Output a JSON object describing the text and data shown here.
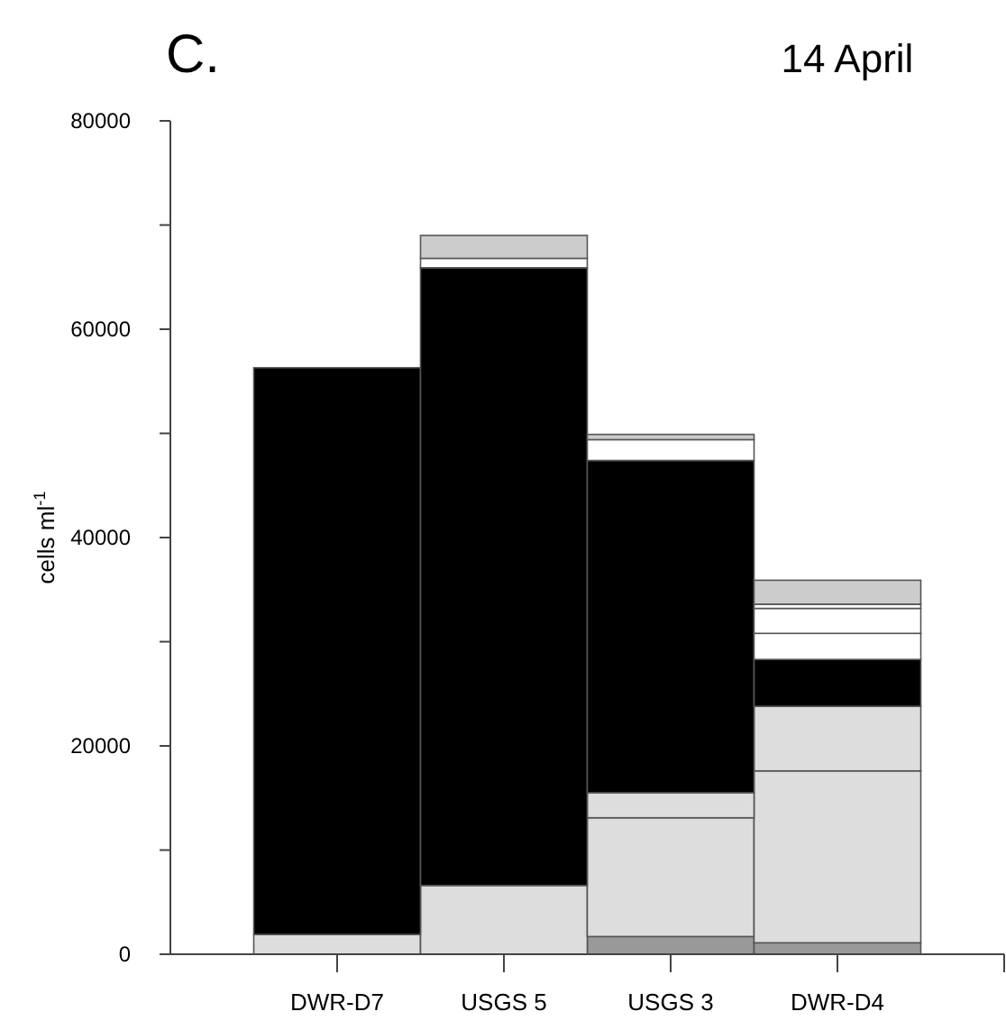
{
  "chart_data": {
    "type": "bar",
    "title": "C.",
    "subtitle": "14 April",
    "ylabel": "cells ml$^{-1}$",
    "stacked": true,
    "categories": [
      "DWR-D7",
      "USGS 5",
      "USGS 3",
      "DWR-D4"
    ],
    "series": [
      {
        "color": "#999999",
        "values": [
          0,
          0,
          1700,
          1100
        ]
      },
      {
        "color": "#dddddd",
        "values": [
          1900,
          6600,
          11400,
          16500
        ]
      },
      {
        "color": "#dddddd",
        "values": [
          0,
          0,
          2400,
          6200
        ]
      },
      {
        "color": "#000000",
        "values": [
          54400,
          59300,
          31900,
          4500
        ]
      },
      {
        "color": "#ffffff",
        "values": [
          0,
          900,
          2000,
          2500
        ]
      },
      {
        "color": "#ffffff",
        "values": [
          0,
          0,
          0,
          2400
        ]
      },
      {
        "color": "#ffffff",
        "values": [
          0,
          0,
          0,
          400
        ]
      },
      {
        "color": "#cccccc",
        "values": [
          0,
          2200,
          500,
          2300
        ]
      }
    ],
    "ylim": [
      0,
      80000
    ],
    "yticks": [
      0,
      {
        "value": 10000,
        "label": null
      },
      20000,
      {
        "value": 30000,
        "label": null
      },
      40000,
      {
        "value": 50000,
        "label": null
      },
      60000,
      {
        "value": 70000,
        "label": null
      },
      80000
    ],
    "tick_labels": true
  }
}
